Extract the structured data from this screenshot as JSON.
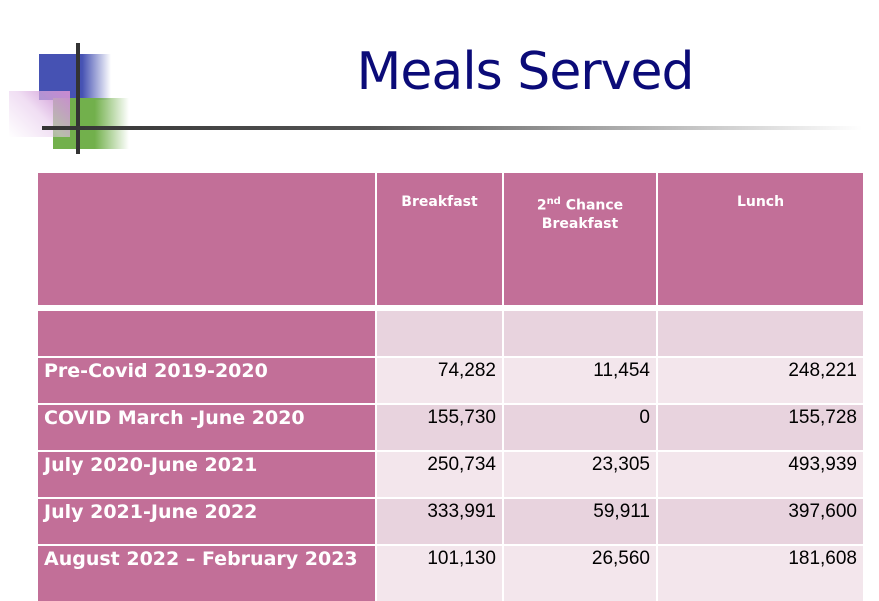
{
  "title": "Meals Served",
  "colors": {
    "header": "#c26f98",
    "row_light": "#f3e6ec",
    "row_dark": "#e8d3de",
    "title": "#0b0b78"
  },
  "table": {
    "headers": [
      "",
      "Breakfast",
      "2nd Chance Breakfast",
      "Lunch"
    ],
    "header_2nd_parts": {
      "num": "2",
      "sup": "nd",
      "rest": "Chance",
      "line2": "Breakfast"
    },
    "rows": [
      {
        "label": "Pre-Covid 2019-2020",
        "values": [
          "74,282",
          "11,454",
          "248,221"
        ]
      },
      {
        "label": "COVID March -June 2020",
        "values": [
          "155,730",
          "0",
          "155,728"
        ]
      },
      {
        "label": "July 2020-June 2021",
        "values": [
          "250,734",
          "23,305",
          "493,939"
        ]
      },
      {
        "label": "July 2021-June 2022",
        "values": [
          "333,991",
          "59,911",
          "397,600"
        ]
      },
      {
        "label": "August 2022 – February 2023",
        "values": [
          "101,130",
          "26,560",
          "181,608"
        ]
      }
    ]
  }
}
